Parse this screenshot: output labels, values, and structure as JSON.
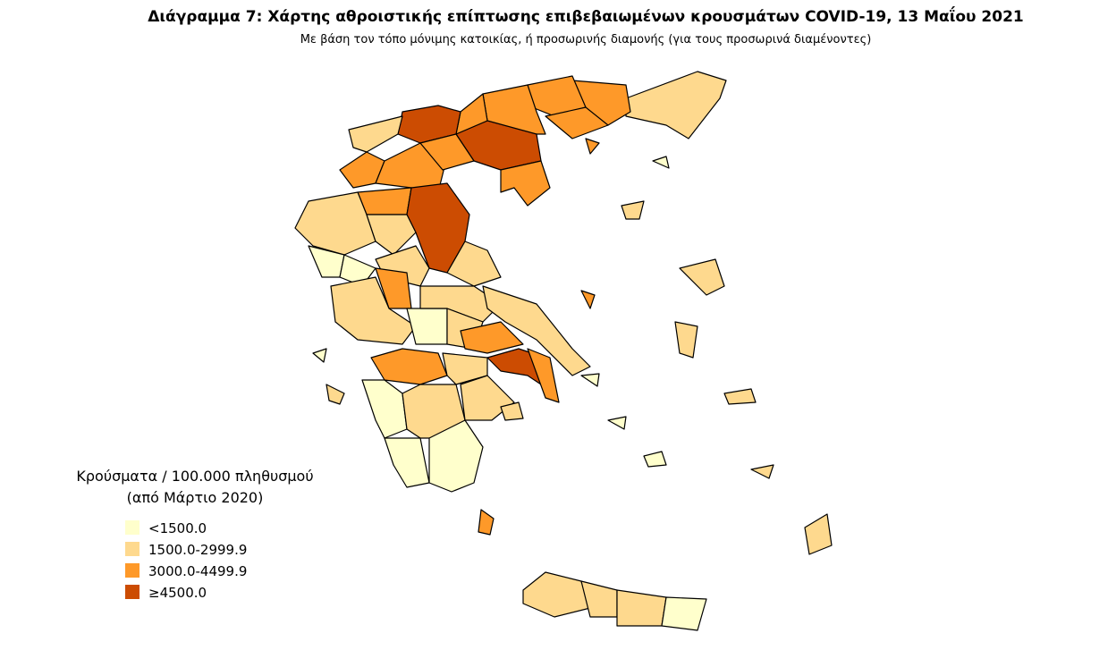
{
  "header": {
    "title": "Διάγραμμα 7: Χάρτης αθροιστικής επίπτωσης επιβεβαιωμένων κρουσμάτων COVID-19, 13 Μαΐου 2021",
    "subtitle": "Με βάση τον τόπο μόνιμης κατοικίας, ή προσωρινής διαμονής (για τους προσωρινά διαμένοντες)"
  },
  "legend": {
    "title": [
      "Κρούσματα / 100.000 πληθυσμού",
      "(από Μάρτιο 2020)"
    ],
    "items": [
      {
        "label": "<1500.0",
        "color": "#ffffcc"
      },
      {
        "label": "1500.0-2999.9",
        "color": "#fed98e"
      },
      {
        "label": "3000.0-4499.9",
        "color": "#fe9929"
      },
      {
        "label": "≥4500.0",
        "color": "#cc4c02"
      }
    ]
  }
}
